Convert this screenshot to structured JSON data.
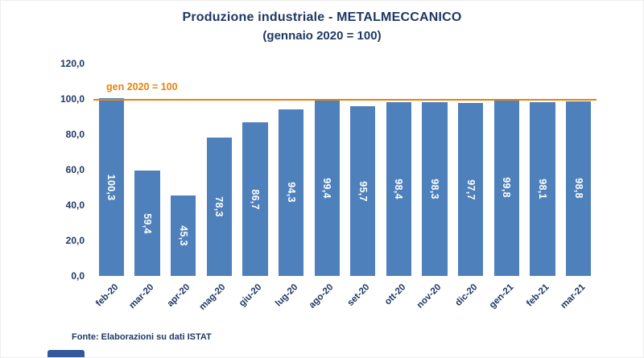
{
  "chart_data": {
    "type": "bar",
    "title": "Produzione industriale - METALMECCANICO",
    "subtitle": "(gennaio 2020 = 100)",
    "categories": [
      "feb-20",
      "mar-20",
      "apr-20",
      "mag-20",
      "giu-20",
      "lug-20",
      "ago-20",
      "set-20",
      "ott-20",
      "nov-20",
      "dic-20",
      "gen-21",
      "feb-21",
      "mar-21"
    ],
    "values": [
      100.3,
      59.4,
      45.3,
      78.3,
      86.7,
      94.3,
      99.4,
      95.7,
      98.4,
      98.3,
      97.7,
      99.8,
      98.1,
      98.8
    ],
    "value_labels": [
      "100,3",
      "59,4",
      "45,3",
      "78,3",
      "86,7",
      "94,3",
      "99,4",
      "95,7",
      "98,4",
      "98,3",
      "97,7",
      "99,8",
      "98,1",
      "98,8"
    ],
    "xlabel": "",
    "ylabel": "",
    "ylim": [
      0,
      120
    ],
    "y_ticks": [
      "120,0",
      "100,0",
      "80,0",
      "60,0",
      "40,0",
      "20,0",
      "0,0"
    ],
    "grid": false,
    "legend": "none",
    "reference_line": {
      "value": 100,
      "label": "gen 2020 = 100"
    },
    "source": "Fonte: Elaborazioni su dati ISTAT",
    "colors": {
      "bar": "#4E80BC",
      "title": "#1F3864",
      "axis_text": "#1F3864",
      "reference": "#E8820C",
      "value_label": "#FFFFFF",
      "footer_ribbon": "#33589B"
    }
  }
}
